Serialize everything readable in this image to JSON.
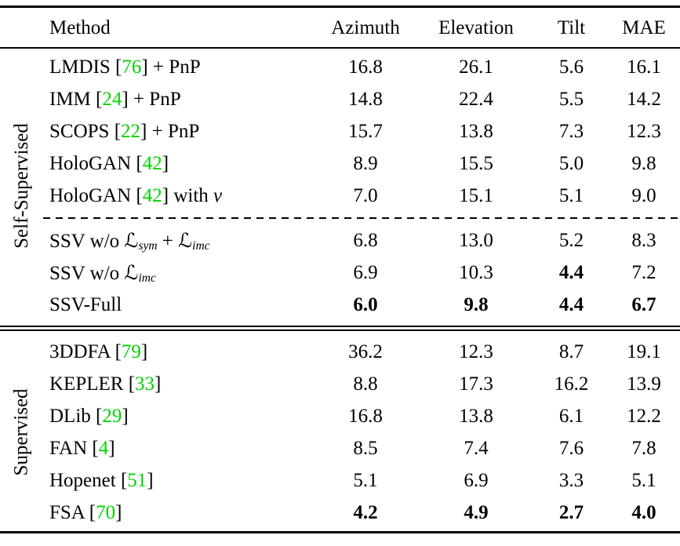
{
  "colors": {
    "citation": "#00d300",
    "text": "#000000",
    "background": "#ffffff"
  },
  "table": {
    "header": {
      "method": "Method",
      "cols": [
        "Azimuth",
        "Elevation",
        "Tilt",
        "MAE"
      ]
    },
    "groups": [
      {
        "label": "Self-Supervised",
        "rows": [
          {
            "method": [
              {
                "t": "LMDIS [",
                "s": "plain"
              },
              {
                "t": "76",
                "s": "cite"
              },
              {
                "t": "] + PnP",
                "s": "plain"
              }
            ],
            "values": [
              "16.8",
              "26.1",
              "5.6",
              "16.1"
            ],
            "bold": [
              false,
              false,
              false,
              false
            ]
          },
          {
            "method": [
              {
                "t": "IMM [",
                "s": "plain"
              },
              {
                "t": "24",
                "s": "cite"
              },
              {
                "t": "] + PnP",
                "s": "plain"
              }
            ],
            "values": [
              "14.8",
              "22.4",
              "5.5",
              "14.2"
            ],
            "bold": [
              false,
              false,
              false,
              false
            ]
          },
          {
            "method": [
              {
                "t": "SCOPS [",
                "s": "plain"
              },
              {
                "t": "22",
                "s": "cite"
              },
              {
                "t": "] + PnP",
                "s": "plain"
              }
            ],
            "values": [
              "15.7",
              "13.8",
              "7.3",
              "12.3"
            ],
            "bold": [
              false,
              false,
              false,
              false
            ]
          },
          {
            "method": [
              {
                "t": "HoloGAN [",
                "s": "plain"
              },
              {
                "t": "42",
                "s": "cite"
              },
              {
                "t": "]",
                "s": "plain"
              }
            ],
            "values": [
              "8.9",
              "15.5",
              "5.0",
              "9.8"
            ],
            "bold": [
              false,
              false,
              false,
              false
            ]
          },
          {
            "method": [
              {
                "t": "HoloGAN [",
                "s": "plain"
              },
              {
                "t": "42",
                "s": "cite"
              },
              {
                "t": "] with ",
                "s": "plain"
              },
              {
                "t": "v",
                "s": "italic"
              }
            ],
            "values": [
              "7.0",
              "15.1",
              "5.1",
              "9.0"
            ],
            "bold": [
              false,
              false,
              false,
              false
            ]
          },
          {
            "method": [
              {
                "t": "SSV w/o ",
                "s": "plain"
              },
              {
                "t": "ℒ",
                "s": "mathcal"
              },
              {
                "t": "sym",
                "s": "sub"
              },
              {
                "t": " + ",
                "s": "plain"
              },
              {
                "t": "ℒ",
                "s": "mathcal"
              },
              {
                "t": "imc",
                "s": "sub"
              }
            ],
            "values": [
              "6.8",
              "13.0",
              "5.2",
              "8.3"
            ],
            "bold": [
              false,
              false,
              false,
              false
            ]
          },
          {
            "method": [
              {
                "t": "SSV w/o ",
                "s": "plain"
              },
              {
                "t": "ℒ",
                "s": "mathcal"
              },
              {
                "t": "imc",
                "s": "sub"
              }
            ],
            "values": [
              "6.9",
              "10.3",
              "4.4",
              "7.2"
            ],
            "bold": [
              false,
              false,
              true,
              false
            ]
          },
          {
            "method": [
              {
                "t": "SSV-Full",
                "s": "plain"
              }
            ],
            "values": [
              "6.0",
              "9.8",
              "4.4",
              "6.7"
            ],
            "bold": [
              true,
              true,
              true,
              true
            ]
          }
        ]
      },
      {
        "label": "Supervised",
        "rows": [
          {
            "method": [
              {
                "t": "3DDFA [",
                "s": "plain"
              },
              {
                "t": "79",
                "s": "cite"
              },
              {
                "t": "]",
                "s": "plain"
              }
            ],
            "values": [
              "36.2",
              "12.3",
              "8.7",
              "19.1"
            ],
            "bold": [
              false,
              false,
              false,
              false
            ]
          },
          {
            "method": [
              {
                "t": "KEPLER [",
                "s": "plain"
              },
              {
                "t": "33",
                "s": "cite"
              },
              {
                "t": "]",
                "s": "plain"
              }
            ],
            "values": [
              "8.8",
              "17.3",
              "16.2",
              "13.9"
            ],
            "bold": [
              false,
              false,
              false,
              false
            ]
          },
          {
            "method": [
              {
                "t": "DLib [",
                "s": "plain"
              },
              {
                "t": "29",
                "s": "cite"
              },
              {
                "t": "]",
                "s": "plain"
              }
            ],
            "values": [
              "16.8",
              "13.8",
              "6.1",
              "12.2"
            ],
            "bold": [
              false,
              false,
              false,
              false
            ]
          },
          {
            "method": [
              {
                "t": "FAN [",
                "s": "plain"
              },
              {
                "t": "4",
                "s": "cite"
              },
              {
                "t": "]",
                "s": "plain"
              }
            ],
            "values": [
              "8.5",
              "7.4",
              "7.6",
              "7.8"
            ],
            "bold": [
              false,
              false,
              false,
              false
            ]
          },
          {
            "method": [
              {
                "t": "Hopenet [",
                "s": "plain"
              },
              {
                "t": "51",
                "s": "cite"
              },
              {
                "t": "]",
                "s": "plain"
              }
            ],
            "values": [
              "5.1",
              "6.9",
              "3.3",
              "5.1"
            ],
            "bold": [
              false,
              false,
              false,
              false
            ]
          },
          {
            "method": [
              {
                "t": "FSA [",
                "s": "plain"
              },
              {
                "t": "70",
                "s": "cite"
              },
              {
                "t": "]",
                "s": "plain"
              }
            ],
            "values": [
              "4.2",
              "4.9",
              "2.7",
              "4.0"
            ],
            "bold": [
              true,
              true,
              true,
              true
            ]
          }
        ]
      }
    ]
  }
}
